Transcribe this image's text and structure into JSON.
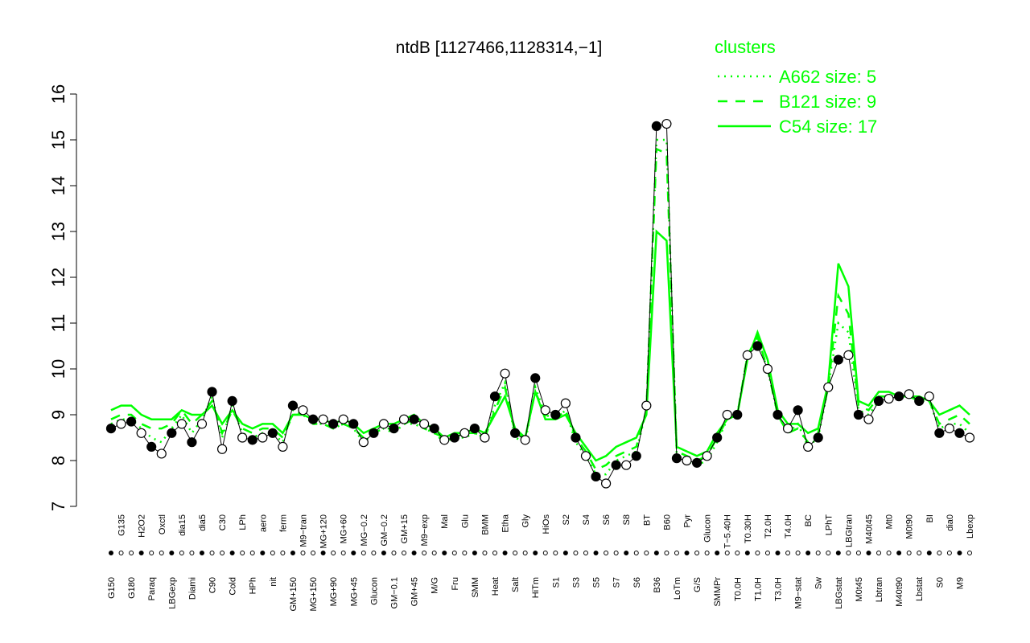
{
  "chart_data": {
    "type": "line",
    "title": "ntdB [1127466,1128314,−1]",
    "legend_title": "clusters",
    "legend_color": "#00ff00",
    "categories": [
      "G150",
      "G135",
      "G180",
      "H2O2",
      "Paraq",
      "Oxctl",
      "LBGexp",
      "dia15",
      "Diami",
      "dia5",
      "C90",
      "C30",
      "Cold",
      "LPh",
      "HPh",
      "aero",
      "nit",
      "ferm",
      "GM+150",
      "M9−tran",
      "MG+150",
      "MG+120",
      "MG+90",
      "MG+60",
      "MG+45",
      "MG−0.2",
      "Glucon",
      "GM−0.2",
      "GM−0.1",
      "GM+15",
      "GM+45",
      "M9−exp",
      "M/G",
      "Mal",
      "Fru",
      "Glu",
      "SMM",
      "BMM",
      "Heat",
      "Etha",
      "Salt",
      "Gly",
      "HiTm",
      "HiOs",
      "S1",
      "S2",
      "S3",
      "S4",
      "S5",
      "S6",
      "S7",
      "S8",
      "S6",
      "BT",
      "B36",
      "B60",
      "LoTm",
      "Pyr",
      "G/S",
      "Glucon",
      "SMMPr",
      "T−5.40H",
      "T0.0H",
      "T0.30H",
      "T1.0H",
      "T2.0H",
      "T3.0H",
      "T4.0H",
      "M9−stat",
      "BC",
      "Sw",
      "LPhT",
      "LBGstat",
      "LBGtran",
      "M0t45",
      "M40t45",
      "Lbtran",
      "Mt0",
      "M40t90",
      "M0t90",
      "Lbstat",
      "BI",
      "S0",
      "dia0",
      "M9",
      "Lbexp"
    ],
    "values": [
      8.7,
      8.8,
      8.85,
      8.6,
      8.3,
      8.15,
      8.6,
      8.8,
      8.4,
      8.8,
      9.5,
      8.25,
      9.3,
      8.5,
      8.45,
      8.5,
      8.6,
      8.3,
      9.2,
      9.1,
      8.9,
      8.9,
      8.8,
      8.9,
      8.8,
      8.4,
      8.6,
      8.8,
      8.7,
      8.9,
      8.9,
      8.8,
      8.7,
      8.45,
      8.5,
      8.6,
      8.7,
      8.5,
      9.4,
      9.9,
      8.6,
      8.45,
      9.8,
      9.1,
      9.0,
      9.25,
      8.5,
      8.1,
      7.65,
      7.5,
      7.9,
      7.9,
      8.1,
      9.2,
      15.3,
      15.35,
      8.05,
      8.0,
      7.95,
      8.1,
      8.5,
      9.0,
      9.0,
      10.3,
      10.5,
      10.0,
      9.0,
      8.7,
      9.1,
      8.3,
      8.5,
      9.6,
      10.2,
      10.3,
      9.0,
      8.9,
      9.3,
      9.35,
      9.4,
      9.45,
      9.3,
      9.4,
      8.6,
      8.7,
      8.6,
      8.5
    ],
    "color": "#000000",
    "series": [
      {
        "name": "A662 size: 5",
        "color": "#00ff00",
        "style": "dotted",
        "values": [
          8.8,
          8.9,
          8.9,
          8.7,
          8.5,
          8.4,
          8.7,
          9.0,
          8.6,
          8.9,
          9.4,
          8.5,
          9.2,
          8.6,
          8.5,
          8.6,
          8.6,
          8.4,
          9.1,
          9.0,
          8.8,
          8.8,
          8.7,
          8.8,
          8.7,
          8.4,
          8.6,
          8.7,
          8.6,
          8.8,
          8.8,
          8.7,
          8.6,
          8.4,
          8.5,
          8.5,
          8.6,
          8.5,
          9.2,
          9.7,
          8.5,
          8.4,
          9.6,
          9.0,
          8.9,
          9.1,
          8.4,
          8.1,
          7.7,
          7.7,
          8.0,
          8.1,
          8.2,
          9.1,
          15.0,
          15.0,
          8.1,
          8.0,
          7.9,
          8.0,
          8.4,
          8.9,
          9.0,
          10.3,
          10.6,
          10.0,
          9.0,
          8.6,
          8.8,
          8.3,
          8.5,
          9.6,
          11.0,
          10.8,
          9.1,
          9.0,
          9.3,
          9.4,
          9.4,
          9.4,
          9.3,
          9.3,
          8.7,
          8.8,
          8.8,
          8.6
        ]
      },
      {
        "name": "B121 size: 9",
        "color": "#00ff00",
        "style": "dashed",
        "values": [
          8.9,
          9.0,
          9.0,
          8.8,
          8.7,
          8.7,
          8.8,
          9.1,
          8.8,
          9.0,
          9.3,
          8.6,
          9.1,
          8.7,
          8.6,
          8.7,
          8.7,
          8.5,
          9.0,
          9.0,
          8.8,
          8.8,
          8.7,
          8.8,
          8.7,
          8.5,
          8.6,
          8.7,
          8.7,
          8.8,
          8.9,
          8.7,
          8.6,
          8.5,
          8.5,
          8.6,
          8.6,
          8.5,
          9.1,
          9.6,
          8.6,
          8.5,
          9.5,
          9.0,
          8.9,
          9.1,
          8.5,
          8.2,
          7.8,
          7.9,
          8.1,
          8.2,
          8.3,
          9.1,
          14.8,
          14.7,
          8.2,
          8.1,
          8.0,
          8.1,
          8.5,
          8.9,
          9.0,
          10.3,
          10.7,
          10.0,
          9.0,
          8.6,
          8.7,
          8.4,
          8.6,
          9.6,
          11.6,
          11.2,
          9.2,
          9.1,
          9.4,
          9.4,
          9.4,
          9.4,
          9.3,
          9.3,
          8.8,
          8.9,
          9.0,
          8.8
        ]
      },
      {
        "name": "C54 size: 17",
        "color": "#00ff00",
        "style": "solid",
        "values": [
          9.1,
          9.2,
          9.2,
          9.0,
          8.9,
          8.9,
          8.9,
          9.1,
          9.0,
          9.0,
          9.2,
          8.8,
          9.1,
          8.8,
          8.7,
          8.8,
          8.8,
          8.6,
          9.0,
          9.0,
          8.9,
          8.9,
          8.8,
          8.9,
          8.8,
          8.6,
          8.7,
          8.8,
          8.8,
          8.9,
          9.0,
          8.8,
          8.7,
          8.5,
          8.6,
          8.6,
          8.7,
          8.6,
          9.0,
          9.4,
          8.7,
          8.5,
          9.5,
          8.9,
          8.9,
          9.0,
          8.6,
          8.3,
          8.0,
          8.1,
          8.3,
          8.4,
          8.5,
          9.0,
          13.0,
          12.8,
          8.3,
          8.2,
          8.1,
          8.2,
          8.6,
          8.9,
          9.0,
          10.2,
          10.8,
          10.2,
          9.1,
          8.8,
          8.8,
          8.6,
          8.7,
          9.7,
          12.3,
          11.8,
          9.3,
          9.2,
          9.5,
          9.5,
          9.4,
          9.4,
          9.4,
          9.3,
          9.0,
          9.1,
          9.2,
          9.0
        ]
      }
    ],
    "ylim": [
      7,
      16
    ],
    "yticks": [
      7,
      8,
      9,
      10,
      11,
      12,
      13,
      14,
      15,
      16
    ]
  }
}
